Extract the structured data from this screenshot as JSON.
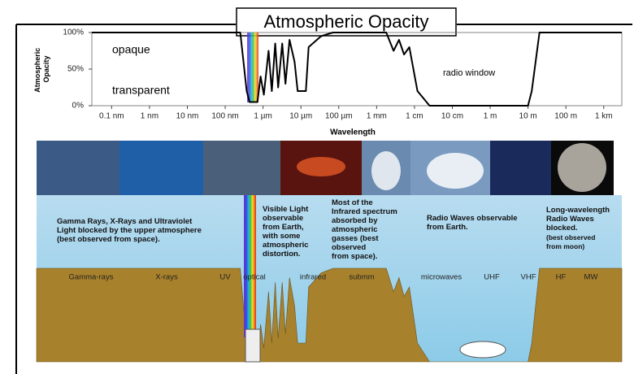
{
  "chart_data": {
    "type": "line",
    "title": "Atmospheric Opacity",
    "y_label": [
      "Atmospheric",
      "Opacity"
    ],
    "x_label": "Wavelength",
    "xscale": "log",
    "xlim": [
      3e-11,
      3000
    ],
    "ylim": [
      0,
      100
    ],
    "xticks": [
      {
        "value": 1e-10,
        "label": "0.1 nm"
      },
      {
        "value": 1e-09,
        "label": "1 nm"
      },
      {
        "value": 1e-08,
        "label": "10 nm"
      },
      {
        "value": 1e-07,
        "label": "100 nm"
      },
      {
        "value": 1e-06,
        "label": "1 µm"
      },
      {
        "value": 1e-05,
        "label": "10 µm"
      },
      {
        "value": 0.0001,
        "label": "100 µm"
      },
      {
        "value": 0.001,
        "label": "1 mm"
      },
      {
        "value": 0.01,
        "label": "1 cm"
      },
      {
        "value": 0.1,
        "label": "10 cm"
      },
      {
        "value": 1,
        "label": "1 m"
      },
      {
        "value": 10,
        "label": "10 m"
      },
      {
        "value": 100,
        "label": "100 m"
      },
      {
        "value": 1000,
        "label": "1 km"
      }
    ],
    "yticks": [
      {
        "value": 0,
        "label": "0%"
      },
      {
        "value": 50,
        "label": "50%"
      },
      {
        "value": 100,
        "label": "100%"
      }
    ],
    "annotations": [
      "opaque",
      "transparent",
      "radio window"
    ],
    "x": [
      3e-11,
      2.5e-07,
      3.7e-07,
      4.4e-07,
      7.1e-07,
      8.6e-07,
      1.05e-06,
      1.4e-06,
      1.7e-06,
      2.1e-06,
      2.5e-06,
      3.2e-06,
      3.9e-06,
      5e-06,
      6.8e-06,
      8.2e-06,
      1.35e-05,
      1.6e-05,
      3.4e-05,
      7e-05,
      0.0018,
      0.0028,
      0.0039,
      0.0053,
      0.0073,
      0.012,
      0.025,
      10,
      12.5,
      20,
      3000
    ],
    "series": [
      {
        "name": "Atmospheric Opacity",
        "color": "#000000",
        "values": [
          100,
          100,
          20,
          5,
          5,
          40,
          15,
          75,
          20,
          85,
          25,
          85,
          30,
          90,
          60,
          20,
          20,
          80,
          95,
          100,
          100,
          75,
          90,
          70,
          80,
          20,
          0,
          0,
          20,
          100,
          100
        ]
      }
    ]
  },
  "illustration": {
    "bands": [
      "Gamma-rays",
      "X-rays",
      "UV",
      "optical",
      "infrared",
      "submm",
      "microwaves",
      "UHF",
      "VHF",
      "HF",
      "MW"
    ],
    "notes": [
      [
        "Gamma Rays, X-Rays and Ultraviolet",
        "Light blocked by the upper atmosphere",
        "(best observed from space)."
      ],
      [
        "Visible Light",
        "observable",
        "from Earth,",
        "with some",
        "atmospheric",
        "distortion."
      ],
      [
        "Most of the",
        "Infrared spectrum",
        "absorbed by",
        "atmospheric",
        "gasses (best",
        "observed",
        "from space)."
      ],
      [
        "Radio Waves observable",
        "from Earth."
      ],
      [
        "Long-wavelength",
        "Radio Waves",
        "blocked."
      ],
      [
        "(best observed",
        "from moon)"
      ]
    ]
  }
}
